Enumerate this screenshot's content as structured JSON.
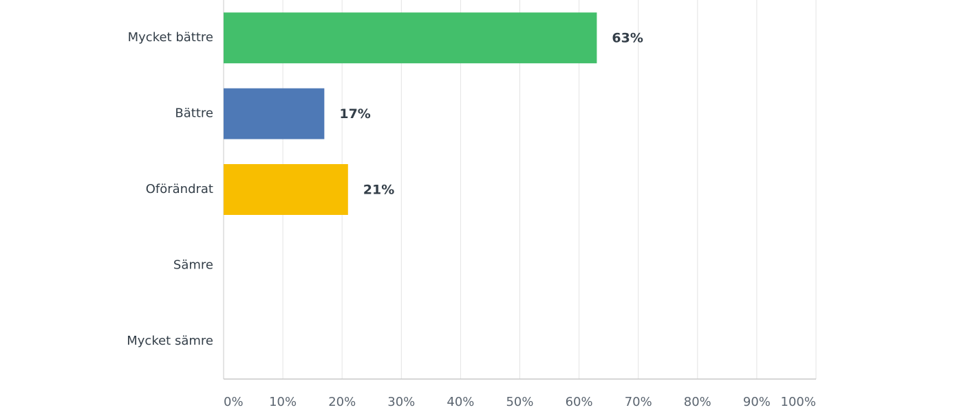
{
  "chart_data": {
    "type": "bar",
    "orientation": "horizontal",
    "categories": [
      "Mycket bättre",
      "Bättre",
      "Oförändrat",
      "Sämre",
      "Mycket sämre"
    ],
    "values": [
      63,
      17,
      21,
      0,
      0
    ],
    "value_labels": [
      "63%",
      "17%",
      "21%",
      null,
      null
    ],
    "colors": [
      "#43bf6b",
      "#4e79b6",
      "#f8be00",
      "#43bf6b",
      "#4e79b6"
    ],
    "xlim": [
      0,
      100
    ],
    "xticks": [
      {
        "value": 0,
        "label": "0%"
      },
      {
        "value": 10,
        "label": "10%"
      },
      {
        "value": 20,
        "label": "20%"
      },
      {
        "value": 30,
        "label": "30%"
      },
      {
        "value": 40,
        "label": "40%"
      },
      {
        "value": 50,
        "label": "50%"
      },
      {
        "value": 60,
        "label": "60%"
      },
      {
        "value": 70,
        "label": "70%"
      },
      {
        "value": 80,
        "label": "80%"
      },
      {
        "value": 90,
        "label": "90%"
      },
      {
        "value": 100,
        "label": "100%"
      }
    ],
    "grid": true
  }
}
